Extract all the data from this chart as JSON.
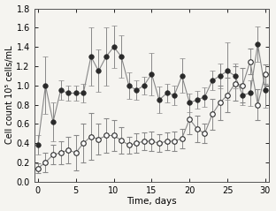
{
  "title": "",
  "xlabel": "Time, days",
  "ylabel": "Cell count 10⁵ cells/mL",
  "xlim": [
    -0.5,
    30.5
  ],
  "ylim": [
    0,
    1.8
  ],
  "yticks": [
    0,
    0.2,
    0.4,
    0.6,
    0.8,
    1.0,
    1.2,
    1.4,
    1.6,
    1.8
  ],
  "xticks": [
    0,
    5,
    10,
    15,
    20,
    25,
    30
  ],
  "filled_x": [
    0,
    1,
    2,
    3,
    4,
    5,
    6,
    7,
    8,
    9,
    10,
    11,
    12,
    13,
    14,
    15,
    16,
    17,
    18,
    19,
    20,
    21,
    22,
    23,
    24,
    25,
    26,
    27,
    28,
    29,
    30
  ],
  "filled_y": [
    0.38,
    1.0,
    0.62,
    0.95,
    0.92,
    0.92,
    0.92,
    1.3,
    1.15,
    1.3,
    1.4,
    1.3,
    1.0,
    0.95,
    1.0,
    1.12,
    0.85,
    0.92,
    0.9,
    1.1,
    0.82,
    0.85,
    0.88,
    1.05,
    1.1,
    1.15,
    1.1,
    0.9,
    0.92,
    1.43,
    0.95
  ],
  "filled_yerr": [
    0.1,
    0.3,
    0.2,
    0.1,
    0.08,
    0.08,
    0.1,
    0.3,
    0.22,
    0.3,
    0.22,
    0.22,
    0.14,
    0.1,
    0.09,
    0.22,
    0.14,
    0.1,
    0.1,
    0.18,
    0.1,
    0.09,
    0.1,
    0.1,
    0.13,
    0.3,
    0.13,
    0.1,
    0.13,
    0.18,
    0.18
  ],
  "open_x": [
    0,
    1,
    2,
    3,
    4,
    5,
    6,
    7,
    8,
    9,
    10,
    11,
    12,
    13,
    14,
    15,
    16,
    17,
    18,
    19,
    20,
    21,
    22,
    23,
    24,
    25,
    26,
    27,
    28,
    29,
    30
  ],
  "open_y": [
    0.14,
    0.2,
    0.28,
    0.3,
    0.33,
    0.3,
    0.4,
    0.47,
    0.44,
    0.48,
    0.48,
    0.43,
    0.38,
    0.4,
    0.42,
    0.42,
    0.4,
    0.42,
    0.42,
    0.45,
    0.65,
    0.55,
    0.5,
    0.7,
    0.82,
    0.9,
    1.02,
    1.0,
    1.25,
    0.8,
    1.12
  ],
  "open_yerr": [
    0.05,
    0.1,
    0.1,
    0.12,
    0.14,
    0.18,
    0.2,
    0.24,
    0.16,
    0.18,
    0.16,
    0.14,
    0.09,
    0.1,
    0.09,
    0.1,
    0.09,
    0.09,
    0.1,
    0.1,
    0.16,
    0.14,
    0.1,
    0.16,
    0.18,
    0.18,
    0.18,
    0.18,
    0.13,
    0.16,
    0.1
  ],
  "line_color": "#888888",
  "filled_marker_color": "#2a2a2a",
  "open_marker_facecolor": "white",
  "open_marker_edgecolor": "#2a2a2a",
  "marker_size": 4,
  "linewidth": 0.8,
  "capsize": 2,
  "elinewidth": 0.7,
  "bg_color": "#f5f4f0",
  "spine_color": "#555555"
}
